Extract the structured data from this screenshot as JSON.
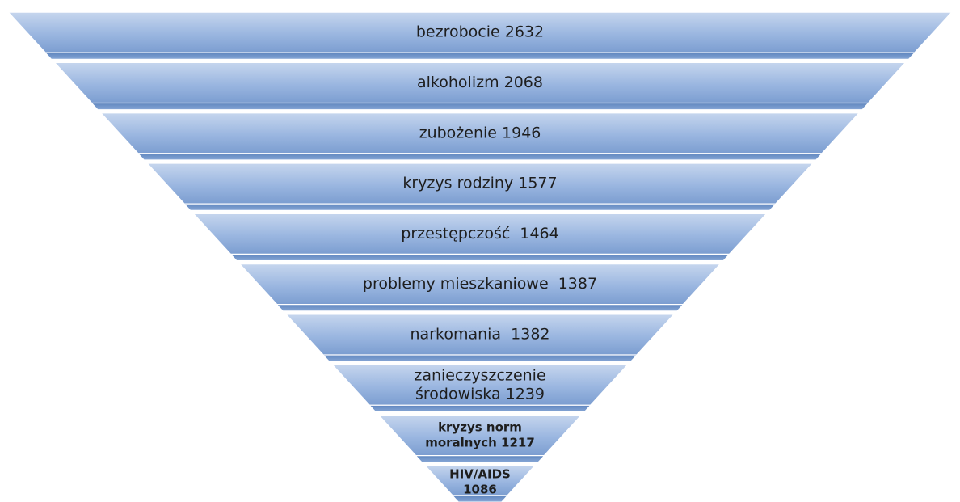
{
  "levels": [
    [
      "bezrobocie 2632"
    ],
    [
      "alkoholizm 2068"
    ],
    [
      "zubożenie 1946"
    ],
    [
      "kryzys rodziny 1577"
    ],
    [
      "przestępczość  1464"
    ],
    [
      "problemy mieszkaniowe  1387"
    ],
    [
      "narkomania  1382"
    ],
    [
      "zanieczyszczenie",
      "środowiska 1239"
    ],
    [
      "kryzys norm",
      "moralnych 1217"
    ],
    [
      "HIV/AIDS",
      "1086"
    ]
  ]
}
